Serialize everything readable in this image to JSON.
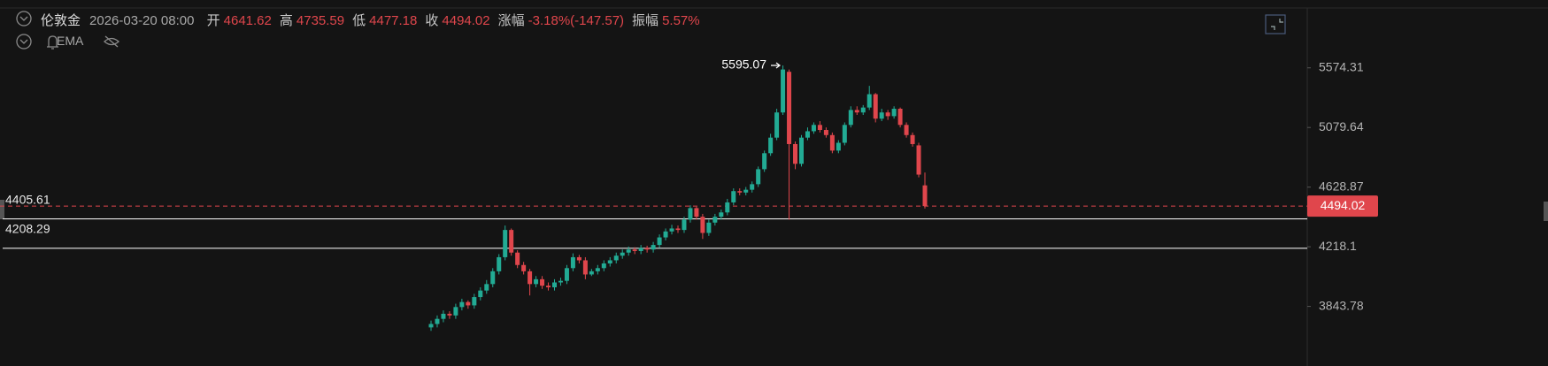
{
  "header": {
    "symbol": "伦敦金",
    "time": "2026-03-20 08:00",
    "fields": [
      {
        "label": "开",
        "value": 4641.62
      },
      {
        "label": "高",
        "value": 4735.59
      },
      {
        "label": "低",
        "value": 4477.18
      },
      {
        "label": "收",
        "value": 4494.02
      },
      {
        "label": "涨幅",
        "value": "-3.18%(-147.57)"
      },
      {
        "label": "振幅",
        "value": "5.57%"
      }
    ],
    "indicator": "EMA"
  },
  "chart_data": {
    "type": "candlestick",
    "log_y": true,
    "up_color": "#22ab94",
    "down_color": "#e0464c",
    "ylim": [
      3503,
      6111
    ],
    "yticks": [
      5574.31,
      5079.64,
      4628.87,
      4218.1,
      3843.78
    ],
    "open": [
      3720,
      3740,
      3770,
      3800,
      3790,
      3840,
      3870,
      3850,
      3900,
      3940,
      3980,
      4060,
      4150,
      4330,
      4180,
      4100,
      4060,
      3980,
      4010,
      3970,
      3960,
      3990,
      4000,
      4080,
      4150,
      4130,
      4040,
      4060,
      4080,
      4110,
      4130,
      4160,
      4180,
      4200,
      4190,
      4210,
      4200,
      4230,
      4280,
      4320,
      4340,
      4330,
      4400,
      4480,
      4420,
      4310,
      4380,
      4420,
      4450,
      4520,
      4600,
      4590,
      4610,
      4650,
      4760,
      4880,
      5000,
      5200,
      5540,
      4950,
      4800,
      5000,
      5050,
      5100,
      5060,
      5020,
      4900,
      4960,
      5100,
      5220,
      5200,
      5240,
      5350,
      5150,
      5200,
      5170,
      5230,
      5100,
      5020,
      4940,
      4641.62
    ],
    "high": [
      3760,
      3790,
      3820,
      3815,
      3860,
      3890,
      3880,
      3920,
      3960,
      4005,
      4080,
      4170,
      4360,
      4340,
      4195,
      4120,
      4075,
      4030,
      4030,
      3990,
      4010,
      4020,
      4100,
      4175,
      4165,
      4150,
      4075,
      4100,
      4130,
      4150,
      4180,
      4200,
      4220,
      4215,
      4230,
      4225,
      4250,
      4300,
      4340,
      4365,
      4360,
      4420,
      4500,
      4490,
      4440,
      4400,
      4440,
      4470,
      4545,
      4620,
      4620,
      4630,
      4670,
      4780,
      4900,
      5030,
      5230,
      5595.07,
      5560,
      4970,
      5020,
      5080,
      5120,
      5130,
      5080,
      5040,
      4980,
      5120,
      5250,
      5250,
      5260,
      5420,
      5360,
      5230,
      5220,
      5250,
      5240,
      5120,
      5040,
      4960,
      4735.59
    ],
    "low": [
      3700,
      3720,
      3750,
      3770,
      3770,
      3820,
      3830,
      3830,
      3880,
      3920,
      3960,
      4040,
      4130,
      4160,
      4080,
      4040,
      3910,
      3960,
      3950,
      3940,
      3940,
      3970,
      3980,
      4060,
      4110,
      4010,
      4030,
      4040,
      4060,
      4090,
      4110,
      4140,
      4160,
      4170,
      4170,
      4180,
      4180,
      4210,
      4260,
      4300,
      4310,
      4310,
      4380,
      4400,
      4270,
      4290,
      4360,
      4400,
      4430,
      4500,
      4570,
      4570,
      4590,
      4630,
      4740,
      4860,
      4980,
      5180,
      4400,
      4760,
      4780,
      4980,
      5030,
      5040,
      5000,
      4880,
      4880,
      4940,
      5080,
      5180,
      5180,
      5220,
      5120,
      5130,
      5140,
      5150,
      5080,
      5000,
      4930,
      4700,
      4477.18
    ],
    "close": [
      3740,
      3770,
      3800,
      3790,
      3840,
      3870,
      3850,
      3900,
      3940,
      3980,
      4060,
      4150,
      4330,
      4180,
      4100,
      4060,
      3980,
      4010,
      3970,
      3960,
      3990,
      4000,
      4080,
      4150,
      4130,
      4040,
      4060,
      4080,
      4110,
      4130,
      4160,
      4180,
      4200,
      4190,
      4210,
      4200,
      4230,
      4280,
      4320,
      4340,
      4330,
      4400,
      4480,
      4420,
      4310,
      4380,
      4420,
      4450,
      4520,
      4600,
      4590,
      4610,
      4650,
      4760,
      4880,
      5000,
      5200,
      5560,
      4950,
      4800,
      5000,
      5050,
      5100,
      5060,
      5020,
      4900,
      4960,
      5100,
      5220,
      5200,
      5240,
      5350,
      5150,
      5200,
      5170,
      5230,
      5100,
      5020,
      4950,
      4720,
      4494.02
    ],
    "levels": [
      4405.61,
      4208.29
    ],
    "last_price": 4494.02,
    "peak_index": 57
  }
}
